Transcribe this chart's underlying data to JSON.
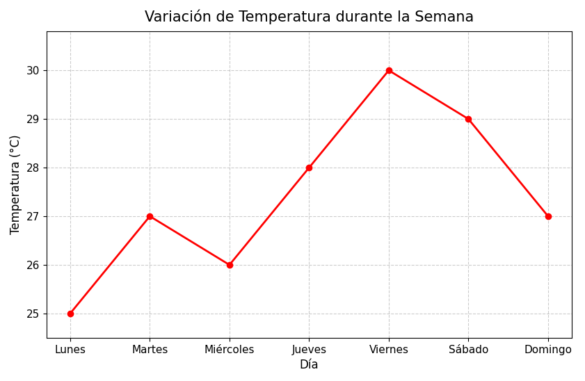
{
  "title": "Variación de Temperatura durante la Semana",
  "xlabel": "Día",
  "ylabel": "Temperatura (°C)",
  "days": [
    "Lunes",
    "Martes",
    "Miércoles",
    "Jueves",
    "Viernes",
    "Sábado",
    "Domingo"
  ],
  "temperatures": [
    25,
    27,
    26,
    28,
    30,
    29,
    27
  ],
  "line_color": "#ff0000",
  "marker": "o",
  "marker_size": 6,
  "line_width": 2,
  "ylim": [
    24.5,
    30.8
  ],
  "yticks": [
    25,
    26,
    27,
    28,
    29,
    30
  ],
  "grid_color": "#aaaaaa",
  "grid_linestyle": "--",
  "grid_alpha": 0.6,
  "title_fontsize": 15,
  "label_fontsize": 12,
  "tick_fontsize": 11,
  "background_color": "#ffffff"
}
